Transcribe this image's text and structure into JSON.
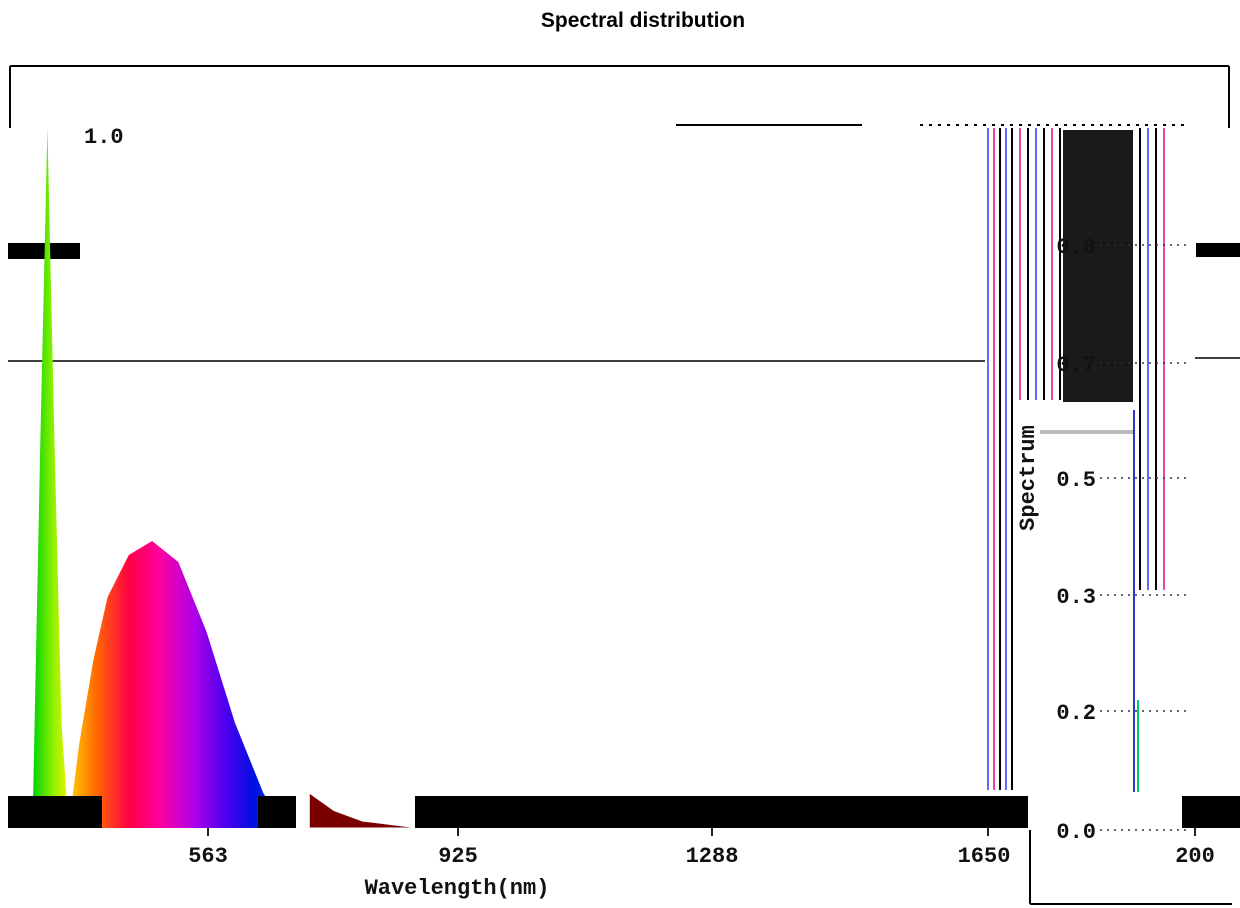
{
  "chart_data": {
    "type": "area",
    "title": "Spectral distribution",
    "xlabel": "Wavelength(nm)",
    "ylabel": "Spectrum",
    "x_ticks": [
      "563",
      "925",
      "1288",
      "1650",
      "200"
    ],
    "y_ticks": [
      "1.0",
      "0.8",
      "0.7",
      "0.5",
      "0.3",
      "0.2",
      "0.0"
    ],
    "x_range": [
      200,
      2000
    ],
    "y_range": [
      0,
      1.0
    ],
    "grid": false,
    "series": [
      {
        "x": [
          295,
          305,
          315,
          325,
          335,
          345
        ],
        "y": [
          0.05,
          0.55,
          1.0,
          0.55,
          0.15,
          0.0
        ],
        "fill": "green-yellow gradient"
      },
      {
        "x": [
          345,
          360,
          380,
          400,
          430,
          463,
          500,
          540,
          580,
          620,
          650
        ],
        "y": [
          0.0,
          0.12,
          0.24,
          0.33,
          0.39,
          0.41,
          0.38,
          0.28,
          0.15,
          0.05,
          0.0
        ],
        "fill": "spectrum gradient"
      },
      {
        "x": [
          685,
          720,
          760,
          800,
          840
        ],
        "y": [
          0.05,
          0.025,
          0.01,
          0.005,
          0.0
        ],
        "fill": "#7a0000"
      }
    ]
  }
}
